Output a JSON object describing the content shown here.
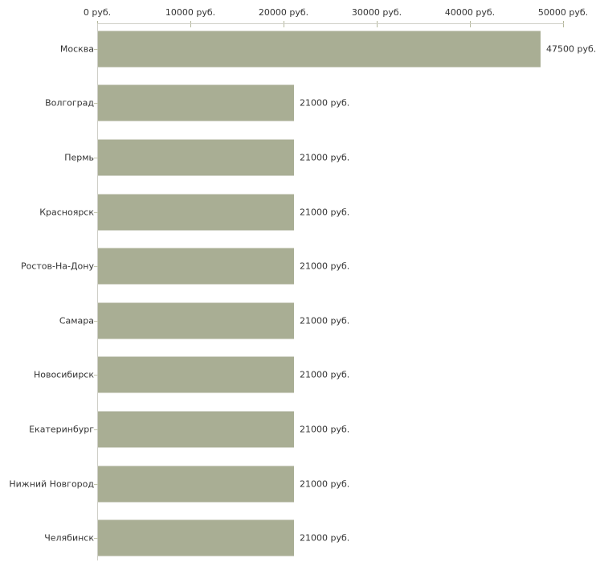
{
  "chart_data": {
    "type": "bar",
    "orientation": "horizontal",
    "title": "",
    "xlabel": "",
    "ylabel": "",
    "unit": "руб.",
    "categories": [
      "Москва",
      "Волгоград",
      "Пермь",
      "Красноярск",
      "Ростов-На-Дону",
      "Самара",
      "Новосибирск",
      "Екатеринбург",
      "Нижний Новгород",
      "Челябинск"
    ],
    "values": [
      47500,
      21000,
      21000,
      21000,
      21000,
      21000,
      21000,
      21000,
      21000,
      21000
    ],
    "value_labels": [
      "47500 руб.",
      "21000 руб.",
      "21000 руб.",
      "21000 руб.",
      "21000 руб.",
      "21000 руб.",
      "21000 руб.",
      "21000 руб.",
      "21000 руб.",
      "21000 руб."
    ],
    "x_ticks": [
      0,
      10000,
      20000,
      30000,
      40000,
      50000
    ],
    "x_tick_labels": [
      "0 руб.",
      "10000 руб.",
      "20000 руб.",
      "30000 руб.",
      "40000 руб.",
      "50000 руб."
    ],
    "xlim": [
      0,
      50000
    ],
    "grid": false,
    "legend": "none",
    "axis_position": "top",
    "colors": {
      "bar_fill": "#a9ae94",
      "axis_line": "#cfcfc7",
      "x_tick_mark": "#b5b89c",
      "y_tick_mark": "#c2c5ad",
      "text": "#333333",
      "background": "#ffffff"
    }
  }
}
